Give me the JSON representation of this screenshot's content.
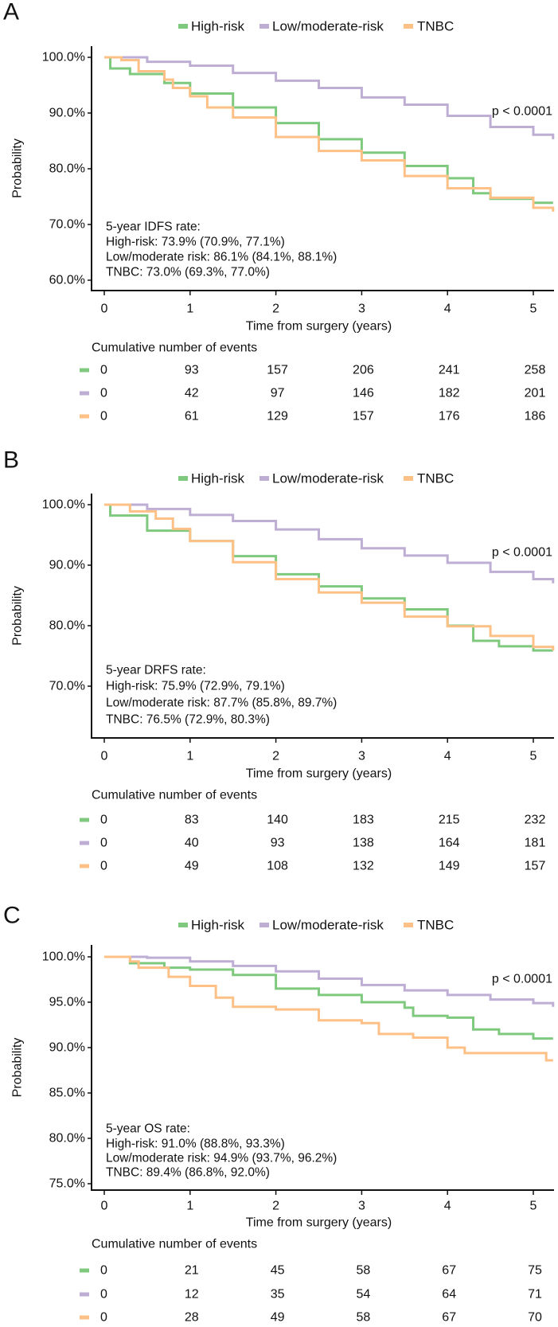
{
  "colors": {
    "High-risk": "#7FC97F",
    "Low/moderate-risk": "#BEAED4",
    "TNBC": "#FDC086",
    "axis": "#111111"
  },
  "chart_data": [
    {
      "type": "line",
      "panel_label": "A",
      "legend": [
        "High-risk",
        "Low/moderate-risk",
        "TNBC"
      ],
      "legend_position": "top",
      "ylabel": "Probability",
      "xlabel": "Time from surgery (years)",
      "xlim": [
        0,
        5.23
      ],
      "ylim": [
        58,
        100
      ],
      "xticks": [
        0,
        1,
        2,
        3,
        4,
        5
      ],
      "xtick_labels": [
        "0",
        "1",
        "2",
        "3",
        "4",
        "5"
      ],
      "yticks": [
        100,
        90,
        80,
        70,
        60
      ],
      "ytick_labels": [
        "100.0%",
        "90.0%",
        "80.0%",
        "70.0%",
        "60.0%"
      ],
      "grid": false,
      "p_value": "p < 0.0001",
      "annotation": [
        "5-year IDFS rate:",
        "High-risk: 73.9% (70.9%, 77.1%)",
        "Low/moderate risk: 86.1% (84.1%, 88.1%)",
        "TNBC: 73.0% (69.3%, 77.0%)"
      ],
      "risk_table": {
        "title": "Cumulative number of events",
        "rows": [
          {
            "series": "High-risk",
            "values": [
              "0",
              "93",
              "157",
              "206",
              "241",
              "258"
            ]
          },
          {
            "series": "Low/moderate-risk",
            "values": [
              "0",
              "42",
              "97",
              "146",
              "182",
              "201"
            ]
          },
          {
            "series": "TNBC",
            "values": [
              "0",
              "61",
              "129",
              "157",
              "176",
              "186"
            ]
          }
        ]
      },
      "series": [
        {
          "name": "High-risk",
          "x": [
            0,
            0.07,
            0.3,
            0.7,
            1,
            1.5,
            2,
            2.5,
            3,
            3.5,
            4,
            4.3,
            4.5,
            5,
            5.23
          ],
          "y": [
            100,
            98,
            97,
            95.4,
            93.5,
            91,
            88.2,
            85.3,
            82.9,
            80.5,
            78.3,
            75.6,
            74.6,
            73.9,
            73.9
          ]
        },
        {
          "name": "Low/moderate-risk",
          "x": [
            0,
            0.5,
            1,
            1.5,
            2,
            2.5,
            3,
            3.5,
            4,
            4.5,
            5,
            5.23
          ],
          "y": [
            100,
            99.2,
            98.5,
            97.2,
            95.8,
            94.5,
            92.8,
            91.5,
            89.5,
            87.5,
            86.1,
            85.3
          ]
        },
        {
          "name": "TNBC",
          "x": [
            0,
            0.2,
            0.4,
            0.7,
            0.8,
            1,
            1.2,
            1.5,
            2,
            2.5,
            3,
            3.5,
            4,
            4.5,
            5,
            5.23
          ],
          "y": [
            100,
            99.5,
            97.5,
            96,
            94.5,
            93,
            91,
            89.2,
            85.7,
            83.2,
            81.5,
            78.7,
            76.5,
            74.8,
            73.0,
            72.3
          ]
        }
      ]
    },
    {
      "type": "line",
      "panel_label": "B",
      "legend": [
        "High-risk",
        "Low/moderate-risk",
        "TNBC"
      ],
      "legend_position": "top",
      "ylabel": "Probability",
      "xlabel": "Time from surgery (years)",
      "xlim": [
        0,
        5.23
      ],
      "ylim": [
        61.5,
        100
      ],
      "xticks": [
        0,
        1,
        2,
        3,
        4,
        5
      ],
      "xtick_labels": [
        "0",
        "1",
        "2",
        "3",
        "4",
        "5"
      ],
      "yticks": [
        100,
        90,
        80,
        70
      ],
      "ytick_labels": [
        "100.0%",
        "90.0%",
        "80.0%",
        "70.0%"
      ],
      "grid": false,
      "p_value": "p < 0.0001",
      "annotation": [
        "5-year DRFS rate:",
        "High-risk: 75.9% (72.9%, 79.1%)",
        "Low/moderate risk: 87.7% (85.8%, 89.7%)",
        "TNBC: 76.5% (72.9%, 80.3%)"
      ],
      "risk_table": {
        "title": "Cumulative number of events",
        "rows": [
          {
            "series": "High-risk",
            "values": [
              "0",
              "83",
              "140",
              "183",
              "215",
              "232"
            ]
          },
          {
            "series": "Low/moderate-risk",
            "values": [
              "0",
              "40",
              "93",
              "138",
              "164",
              "181"
            ]
          },
          {
            "series": "TNBC",
            "values": [
              "0",
              "49",
              "108",
              "132",
              "149",
              "157"
            ]
          }
        ]
      },
      "series": [
        {
          "name": "High-risk",
          "x": [
            0,
            0.07,
            0.5,
            1,
            1.5,
            2,
            2.5,
            3,
            3.5,
            4,
            4.3,
            4.6,
            5,
            5.23
          ],
          "y": [
            100,
            98.2,
            95.7,
            94,
            91.5,
            88.5,
            86.5,
            84.5,
            82.7,
            80,
            77.5,
            76.6,
            75.9,
            75.9
          ]
        },
        {
          "name": "Low/moderate-risk",
          "x": [
            0,
            0.5,
            1,
            1.5,
            2,
            2.5,
            3,
            3.5,
            4,
            4.5,
            5,
            5.23
          ],
          "y": [
            100,
            99.3,
            98.3,
            97.3,
            95.9,
            94.3,
            92.8,
            91.6,
            90.4,
            88.9,
            87.7,
            87.0
          ]
        },
        {
          "name": "TNBC",
          "x": [
            0,
            0.3,
            0.6,
            0.8,
            1,
            1.5,
            2,
            2.5,
            3,
            3.5,
            4,
            4.5,
            5,
            5.23
          ],
          "y": [
            100,
            98.9,
            97.7,
            96,
            94,
            90.5,
            87.7,
            85.5,
            83.8,
            81.5,
            79.9,
            78.3,
            76.5,
            75.9
          ]
        }
      ]
    },
    {
      "type": "line",
      "panel_label": "C",
      "legend": [
        "High-risk",
        "Low/moderate-risk",
        "TNBC"
      ],
      "legend_position": "top",
      "ylabel": "Probability",
      "xlabel": "Time from surgery (years)",
      "xlim": [
        0,
        5.23
      ],
      "ylim": [
        74.3,
        100
      ],
      "xticks": [
        0,
        1,
        2,
        3,
        4,
        5
      ],
      "xtick_labels": [
        "0",
        "1",
        "2",
        "3",
        "4",
        "5"
      ],
      "yticks": [
        100,
        95,
        90,
        85,
        80,
        75
      ],
      "ytick_labels": [
        "100.0%",
        "95.0%",
        "90.0%",
        "85.0%",
        "80.0%",
        "75.0%"
      ],
      "grid": false,
      "p_value": "p < 0.0001",
      "annotation": [
        "5-year OS rate:",
        "High-risk: 91.0% (88.8%, 93.3%)",
        "Low/moderate risk: 94.9% (93.7%, 96.2%)",
        "TNBC: 89.4% (86.8%, 92.0%)"
      ],
      "risk_table": {
        "title": "Cumulative number of events",
        "rows": [
          {
            "series": "High-risk",
            "values": [
              "0",
              "21",
              "45",
              "58",
              "67",
              "75"
            ]
          },
          {
            "series": "Low/moderate-risk",
            "values": [
              "0",
              "12",
              "35",
              "54",
              "64",
              "71"
            ]
          },
          {
            "series": "TNBC",
            "values": [
              "0",
              "28",
              "49",
              "58",
              "67",
              "70"
            ]
          }
        ]
      },
      "series": [
        {
          "name": "High-risk",
          "x": [
            0,
            0.3,
            0.7,
            1,
            1.5,
            2,
            2.5,
            3,
            3.5,
            3.6,
            4,
            4.3,
            4.6,
            5,
            5.23
          ],
          "y": [
            100,
            99.3,
            98.8,
            98.6,
            98.0,
            96.5,
            95.8,
            95.0,
            94.4,
            93.5,
            93.3,
            92.0,
            91.5,
            91.0,
            91.0
          ]
        },
        {
          "name": "Low/moderate-risk",
          "x": [
            0,
            0.5,
            1,
            1.5,
            2,
            2.5,
            3,
            3.5,
            4,
            4.5,
            5,
            5.23
          ],
          "y": [
            100,
            99.9,
            99.5,
            99.0,
            98.4,
            97.6,
            96.9,
            96.3,
            95.8,
            95.3,
            94.9,
            94.5
          ]
        },
        {
          "name": "TNBC",
          "x": [
            0,
            0.3,
            0.4,
            0.75,
            1,
            1.3,
            1.5,
            2,
            2.5,
            3,
            3.2,
            3.6,
            4,
            4.2,
            5.15,
            5.23
          ],
          "y": [
            100,
            99.5,
            98.8,
            97.8,
            96.8,
            95.5,
            94.5,
            94.2,
            93.0,
            92.7,
            91.5,
            91.1,
            90.0,
            89.4,
            88.6,
            88.6
          ]
        }
      ]
    }
  ]
}
